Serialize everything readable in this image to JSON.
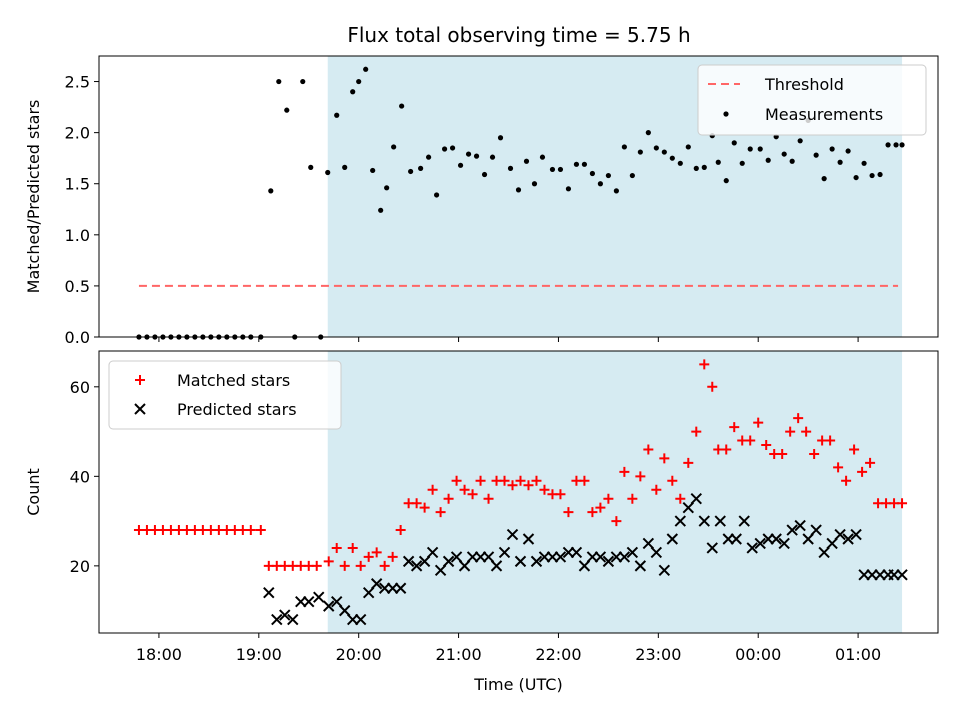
{
  "title": "Flux total observing time = 5.75 h",
  "colors": {
    "shade": "#add8e6",
    "threshold": "#ff6666",
    "matched": "#ff0000",
    "predicted": "#000000",
    "measure": "#000000"
  },
  "chart_data": [
    {
      "type": "scatter",
      "name": "ratio",
      "ylabel": "Matched/Predicted stars",
      "xlabel": "",
      "ylim": [
        0,
        2.75
      ],
      "xlim": [
        17.4,
        25.8
      ],
      "yticks": [
        0.0,
        0.5,
        1.0,
        1.5,
        2.0,
        2.5
      ],
      "ytick_labels": [
        "0.0",
        "0.5",
        "1.0",
        "1.5",
        "2.0",
        "2.5"
      ],
      "shade_span": [
        19.69,
        25.44
      ],
      "legend": {
        "position": "top-right",
        "entries": [
          "Threshold",
          "Measurements"
        ]
      },
      "threshold": {
        "label": "Threshold",
        "value": 0.5,
        "x": [
          17.8,
          25.4
        ]
      },
      "series": [
        {
          "name": "Measurements",
          "x": [
            17.8,
            17.88,
            17.96,
            18.04,
            18.12,
            18.2,
            18.28,
            18.36,
            18.44,
            18.52,
            18.6,
            18.68,
            18.76,
            18.84,
            18.92,
            19.02,
            19.12,
            19.2,
            19.28,
            19.36,
            19.44,
            19.52,
            19.62,
            19.69,
            19.78,
            19.86,
            19.94,
            20.0,
            20.07,
            20.14,
            20.22,
            20.28,
            20.35,
            20.43,
            20.52,
            20.62,
            20.7,
            20.78,
            20.86,
            20.94,
            21.02,
            21.1,
            21.18,
            21.26,
            21.34,
            21.42,
            21.52,
            21.6,
            21.68,
            21.76,
            21.84,
            21.94,
            22.02,
            22.1,
            22.18,
            22.26,
            22.34,
            22.42,
            22.5,
            22.58,
            22.66,
            22.74,
            22.82,
            22.9,
            22.98,
            23.06,
            23.14,
            23.22,
            23.3,
            23.38,
            23.46,
            23.54,
            23.6,
            23.68,
            23.76,
            23.84,
            23.92,
            24.02,
            24.1,
            24.18,
            24.26,
            24.34,
            24.42,
            24.5,
            24.58,
            24.66,
            24.74,
            24.82,
            24.9,
            24.98,
            25.06,
            25.14,
            25.22,
            25.3,
            25.38,
            25.44
          ],
          "y": [
            0,
            0,
            0,
            0,
            0,
            0,
            0,
            0,
            0,
            0,
            0,
            0,
            0,
            0,
            0,
            0,
            1.43,
            2.5,
            2.22,
            0,
            2.5,
            1.66,
            0,
            1.61,
            2.17,
            1.66,
            2.4,
            2.5,
            2.62,
            1.63,
            1.24,
            1.46,
            1.86,
            2.26,
            1.62,
            1.65,
            1.76,
            1.39,
            1.84,
            1.85,
            1.68,
            1.79,
            1.77,
            1.59,
            1.76,
            1.95,
            1.65,
            1.44,
            1.72,
            1.5,
            1.76,
            1.64,
            1.64,
            1.45,
            1.69,
            1.69,
            1.6,
            1.5,
            1.58,
            1.43,
            1.86,
            1.58,
            1.81,
            2.0,
            1.85,
            1.81,
            1.75,
            1.7,
            1.86,
            1.65,
            1.66,
            1.97,
            1.71,
            1.53,
            1.9,
            1.7,
            1.84,
            1.84,
            1.73,
            1.96,
            1.79,
            1.72,
            1.92,
            2.12,
            1.78,
            1.55,
            1.84,
            1.71,
            1.82,
            1.56,
            1.7,
            1.58,
            1.59,
            1.88,
            1.88,
            1.88
          ]
        }
      ]
    },
    {
      "type": "scatter",
      "name": "counts",
      "ylabel": "Count",
      "xlabel": "Time (UTC)",
      "ylim": [
        5,
        68
      ],
      "xlim": [
        17.4,
        25.8
      ],
      "yticks": [
        20,
        40,
        60
      ],
      "ytick_labels": [
        "20",
        "40",
        "60"
      ],
      "xticks": [
        18,
        19,
        20,
        21,
        22,
        23,
        24,
        25
      ],
      "xtick_labels": [
        "18:00",
        "19:00",
        "20:00",
        "21:00",
        "22:00",
        "23:00",
        "00:00",
        "01:00"
      ],
      "shade_span": [
        19.69,
        25.44
      ],
      "legend": {
        "position": "top-left",
        "entries": [
          "Matched stars",
          "Predicted stars"
        ]
      },
      "series": [
        {
          "name": "Matched stars",
          "x": [
            17.8,
            17.88,
            17.96,
            18.04,
            18.12,
            18.2,
            18.28,
            18.36,
            18.44,
            18.52,
            18.6,
            18.68,
            18.76,
            18.84,
            18.92,
            19.02,
            19.1,
            19.18,
            19.26,
            19.34,
            19.42,
            19.5,
            19.58,
            19.7,
            19.78,
            19.86,
            19.94,
            20.02,
            20.1,
            20.18,
            20.26,
            20.34,
            20.42,
            20.5,
            20.58,
            20.66,
            20.74,
            20.82,
            20.9,
            20.98,
            21.06,
            21.14,
            21.22,
            21.3,
            21.38,
            21.46,
            21.54,
            21.62,
            21.7,
            21.78,
            21.86,
            21.94,
            22.02,
            22.1,
            22.18,
            22.26,
            22.34,
            22.42,
            22.5,
            22.58,
            22.66,
            22.74,
            22.82,
            22.9,
            22.98,
            23.06,
            23.14,
            23.22,
            23.3,
            23.38,
            23.46,
            23.54,
            23.6,
            23.68,
            23.76,
            23.84,
            23.92,
            24.0,
            24.08,
            24.16,
            24.24,
            24.32,
            24.4,
            24.48,
            24.56,
            24.64,
            24.72,
            24.8,
            24.88,
            24.96,
            25.04,
            25.12,
            25.2,
            25.28,
            25.36,
            25.44
          ],
          "y": [
            28,
            28,
            28,
            28,
            28,
            28,
            28,
            28,
            28,
            28,
            28,
            28,
            28,
            28,
            28,
            28,
            20,
            20,
            20,
            20,
            20,
            20,
            20,
            21,
            24,
            20,
            24,
            20,
            22,
            23,
            20,
            22,
            28,
            34,
            34,
            33,
            37,
            32,
            35,
            39,
            37,
            36,
            39,
            35,
            39,
            39,
            38,
            39,
            38,
            39,
            37,
            36,
            36,
            32,
            39,
            39,
            32,
            33,
            35,
            30,
            41,
            35,
            40,
            46,
            37,
            44,
            39,
            35,
            43,
            50,
            65,
            60,
            46,
            46,
            51,
            48,
            48,
            52,
            47,
            45,
            45,
            50,
            53,
            50,
            45,
            48,
            48,
            42,
            39,
            46,
            41,
            43,
            34,
            34,
            34,
            34
          ]
        },
        {
          "name": "Predicted stars",
          "x": [
            19.1,
            19.18,
            19.26,
            19.34,
            19.42,
            19.5,
            19.6,
            19.7,
            19.78,
            19.86,
            19.94,
            20.02,
            20.1,
            20.18,
            20.26,
            20.34,
            20.42,
            20.5,
            20.58,
            20.66,
            20.74,
            20.82,
            20.9,
            20.98,
            21.06,
            21.14,
            21.22,
            21.3,
            21.38,
            21.46,
            21.54,
            21.62,
            21.7,
            21.78,
            21.86,
            21.94,
            22.02,
            22.1,
            22.18,
            22.26,
            22.34,
            22.42,
            22.5,
            22.58,
            22.66,
            22.74,
            22.82,
            22.9,
            22.98,
            23.06,
            23.14,
            23.22,
            23.3,
            23.38,
            23.46,
            23.54,
            23.62,
            23.7,
            23.78,
            23.86,
            23.94,
            24.02,
            24.1,
            24.18,
            24.26,
            24.34,
            24.42,
            24.5,
            24.58,
            24.66,
            24.74,
            24.82,
            24.9,
            24.98,
            25.06,
            25.14,
            25.22,
            25.3,
            25.36,
            25.44
          ],
          "y": [
            14,
            8,
            9,
            8,
            12,
            12,
            13,
            11,
            12,
            10,
            8,
            8,
            14,
            16,
            15,
            15,
            15,
            21,
            20,
            21,
            23,
            19,
            21,
            22,
            20,
            22,
            22,
            22,
            20,
            23,
            27,
            21,
            26,
            21,
            22,
            22,
            22,
            23,
            23,
            20,
            22,
            22,
            21,
            22,
            22,
            23,
            20,
            25,
            23,
            19,
            26,
            30,
            33,
            35,
            30,
            24,
            30,
            26,
            26,
            30,
            24,
            25,
            26,
            26,
            25,
            28,
            29,
            26,
            28,
            23,
            25,
            27,
            26,
            27,
            18,
            18,
            18,
            18,
            18,
            18
          ]
        }
      ]
    }
  ]
}
